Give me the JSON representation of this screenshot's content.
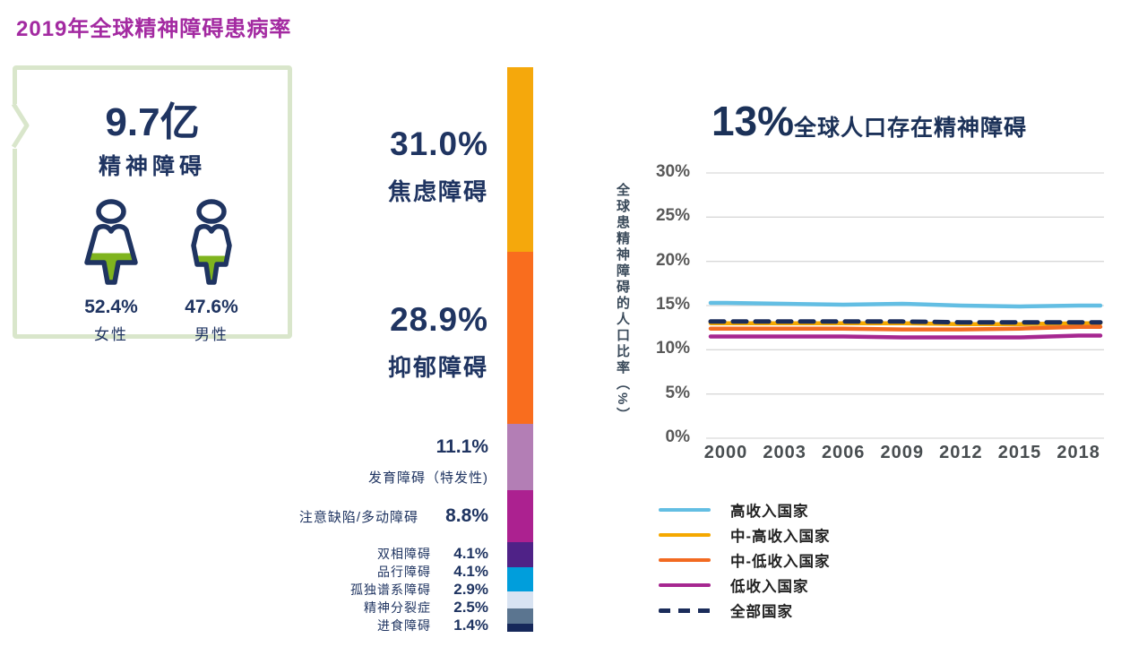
{
  "header": {
    "title": "2019年全球精神障碍患病率"
  },
  "summary_card": {
    "total": "9.7亿",
    "subtitle": "精神障碍",
    "female": {
      "pct": "52.4%",
      "label": "女性",
      "fill": 52.4
    },
    "male": {
      "pct": "47.6%",
      "label": "男性",
      "fill": 47.6
    }
  },
  "colors": {
    "title_magenta": "#A32AA1",
    "navy_text": "#1F3461",
    "card_border_green": "#D9E6CB",
    "person_fill_green": "#7FB41E",
    "grid_gray": "#D9D9D9"
  },
  "chart_data": [
    {
      "type": "bar",
      "orientation": "vertical-stacked",
      "categories": [
        "焦虑障碍",
        "抑郁障碍",
        "发育障碍（特发性)",
        "注意缺陷/多动障碍",
        "双相障碍",
        "品行障碍",
        "孤独谱系障碍",
        "精神分裂症",
        "进食障碍"
      ],
      "values": [
        31.0,
        28.9,
        11.1,
        8.8,
        4.1,
        4.1,
        2.9,
        2.5,
        1.4
      ],
      "labels": [
        "31.0%",
        "28.9%",
        "11.1%",
        "8.8%",
        "4.1%",
        "4.1%",
        "2.9%",
        "2.5%",
        "1.4%"
      ],
      "colors": [
        "#F5A80C",
        "#F96D1E",
        "#B37EB5",
        "#AC2190",
        "#4F2287",
        "#009EDC",
        "#D8E3F2",
        "#5B7590",
        "#16285A"
      ]
    },
    {
      "type": "line",
      "title_pct": "13%",
      "title_text": "全球人口存在精神障碍",
      "ylabel": "全球患精神障碍的人口比率（%）",
      "ylim": [
        0,
        30
      ],
      "grid": true,
      "legend_position": "bottom-left",
      "yticks": [
        "30%",
        "25%",
        "20%",
        "15%",
        "10%",
        "5%",
        "0%"
      ],
      "x": [
        2000,
        2003,
        2006,
        2009,
        2012,
        2015,
        2018
      ],
      "series": [
        {
          "name": "高收入国家",
          "color": "#63BEE3",
          "dash": false,
          "values": [
            15.3,
            15.2,
            15.1,
            15.2,
            15.0,
            14.9,
            15.0
          ]
        },
        {
          "name": "中-高收入国家",
          "color": "#F5A800",
          "dash": false,
          "values": [
            13.0,
            13.0,
            13.0,
            13.0,
            12.9,
            12.9,
            13.0
          ]
        },
        {
          "name": "中-低收入国家",
          "color": "#F26A21",
          "dash": false,
          "values": [
            12.4,
            12.4,
            12.4,
            12.3,
            12.3,
            12.4,
            12.6
          ]
        },
        {
          "name": "低收入国家",
          "color": "#A62790",
          "dash": false,
          "values": [
            11.5,
            11.5,
            11.5,
            11.4,
            11.4,
            11.4,
            11.6
          ]
        },
        {
          "name": "全部国家",
          "color": "#1B2D5B",
          "dash": true,
          "values": [
            13.2,
            13.2,
            13.2,
            13.2,
            13.1,
            13.1,
            13.1
          ]
        }
      ]
    }
  ]
}
